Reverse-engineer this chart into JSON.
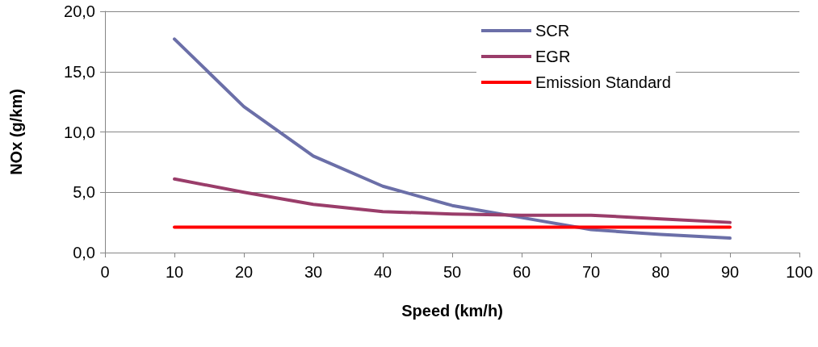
{
  "chart_data": {
    "type": "line",
    "xlabel": "Speed (km/h)",
    "ylabel": "NOx (g/km)",
    "xlim": [
      0,
      100
    ],
    "xticks": [
      0,
      10,
      20,
      30,
      40,
      50,
      60,
      70,
      80,
      90,
      100
    ],
    "ylim": [
      0,
      20
    ],
    "yticks": [
      {
        "value": 0,
        "label": "0,0"
      },
      {
        "value": 5,
        "label": "5,0"
      },
      {
        "value": 10,
        "label": "10,0"
      },
      {
        "value": 15,
        "label": "15,0"
      },
      {
        "value": 20,
        "label": "20,0"
      }
    ],
    "grid": "y",
    "legend": "top right",
    "marker": "none",
    "line_style": "solid",
    "series": [
      {
        "name": "SCR",
        "color": "#6b6fa8",
        "x": [
          10,
          20,
          30,
          40,
          50,
          60,
          70,
          80,
          90
        ],
        "values": [
          17.7,
          12.1,
          8.0,
          5.5,
          3.9,
          2.9,
          1.9,
          1.5,
          1.2
        ]
      },
      {
        "name": "EGR",
        "color": "#9a3d6a",
        "x": [
          10,
          20,
          30,
          40,
          50,
          60,
          70,
          80,
          90
        ],
        "values": [
          6.1,
          5.0,
          4.0,
          3.4,
          3.2,
          3.1,
          3.1,
          2.8,
          2.5
        ]
      },
      {
        "name": "Emission Standard",
        "color": "#ff0000",
        "x": [
          10,
          90
        ],
        "values": [
          2.1,
          2.1
        ]
      }
    ]
  }
}
